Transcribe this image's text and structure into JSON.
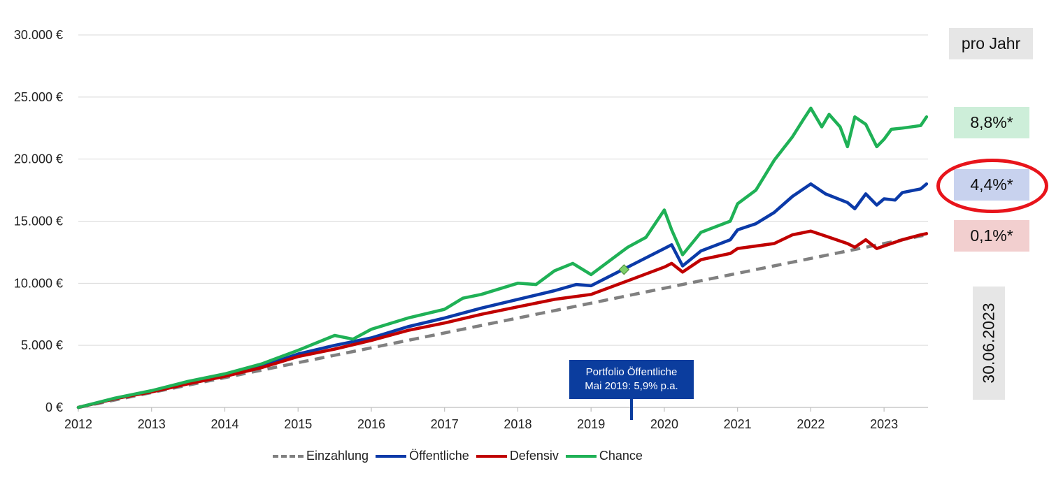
{
  "chart_data": {
    "type": "line",
    "title": "",
    "xlabel": "",
    "ylabel": "",
    "ylim": [
      0,
      30000
    ],
    "y_ticks": [
      "0 €",
      "5.000 €",
      "10.000 €",
      "15.000 €",
      "20.000 €",
      "25.000 €",
      "30.000 €"
    ],
    "x_ticks": [
      "2012",
      "2013",
      "2014",
      "2015",
      "2016",
      "2017",
      "2018",
      "2019",
      "2020",
      "2021",
      "2022",
      "2023"
    ],
    "xlim": [
      2012.0,
      2023.6
    ],
    "grid": "horizontal",
    "legend_position": "bottom",
    "series": [
      {
        "name": "Einzahlung",
        "color": "#808080",
        "style": "dashed",
        "x": [
          2012.0,
          2013.0,
          2014.0,
          2015.0,
          2016.0,
          2017.0,
          2018.0,
          2019.0,
          2020.0,
          2021.0,
          2022.0,
          2023.0,
          2023.58
        ],
        "y": [
          0,
          1200,
          2400,
          3600,
          4800,
          6000,
          7200,
          8400,
          9600,
          10800,
          12000,
          13200,
          13900
        ]
      },
      {
        "name": "Öffentliche",
        "color": "#0b3aa8",
        "style": "solid",
        "x": [
          2012.0,
          2012.5,
          2013.0,
          2013.5,
          2014.0,
          2014.5,
          2015.0,
          2015.5,
          2016.0,
          2016.5,
          2017.0,
          2017.5,
          2018.0,
          2018.5,
          2018.8,
          2019.0,
          2019.5,
          2020.0,
          2020.1,
          2020.25,
          2020.5,
          2020.9,
          2021.0,
          2021.25,
          2021.5,
          2021.75,
          2022.0,
          2022.2,
          2022.5,
          2022.6,
          2022.75,
          2022.9,
          2023.0,
          2023.15,
          2023.25,
          2023.5,
          2023.58
        ],
        "y": [
          0,
          700,
          1300,
          1950,
          2600,
          3300,
          4300,
          5000,
          5600,
          6500,
          7200,
          8000,
          8700,
          9400,
          9900,
          9800,
          11300,
          12800,
          13100,
          11400,
          12600,
          13500,
          14300,
          14800,
          15700,
          17000,
          18000,
          17200,
          16500,
          16000,
          17200,
          16300,
          16800,
          16700,
          17300,
          17600,
          18000
        ]
      },
      {
        "name": "Defensiv",
        "color": "#c00000",
        "style": "solid",
        "x": [
          2012.0,
          2012.5,
          2013.0,
          2013.5,
          2014.0,
          2014.5,
          2015.0,
          2015.5,
          2016.0,
          2016.5,
          2017.0,
          2017.5,
          2018.0,
          2018.5,
          2019.0,
          2019.5,
          2020.0,
          2020.1,
          2020.25,
          2020.5,
          2020.9,
          2021.0,
          2021.5,
          2021.75,
          2022.0,
          2022.2,
          2022.5,
          2022.6,
          2022.75,
          2022.9,
          2023.0,
          2023.25,
          2023.5,
          2023.58
        ],
        "y": [
          0,
          700,
          1250,
          1900,
          2500,
          3200,
          4100,
          4700,
          5400,
          6200,
          6800,
          7500,
          8100,
          8700,
          9100,
          10200,
          11300,
          11600,
          10900,
          11900,
          12400,
          12800,
          13200,
          13900,
          14200,
          13800,
          13200,
          12900,
          13500,
          12800,
          13000,
          13500,
          13900,
          14000
        ]
      },
      {
        "name": "Chance",
        "color": "#1fb156",
        "style": "solid",
        "x": [
          2012.0,
          2012.5,
          2013.0,
          2013.5,
          2014.0,
          2014.5,
          2015.0,
          2015.5,
          2015.75,
          2016.0,
          2016.5,
          2017.0,
          2017.25,
          2017.5,
          2018.0,
          2018.25,
          2018.5,
          2018.75,
          2019.0,
          2019.5,
          2019.75,
          2020.0,
          2020.1,
          2020.25,
          2020.5,
          2020.9,
          2021.0,
          2021.25,
          2021.5,
          2021.75,
          2021.9,
          2022.0,
          2022.15,
          2022.25,
          2022.4,
          2022.5,
          2022.6,
          2022.75,
          2022.9,
          2023.0,
          2023.1,
          2023.25,
          2023.5,
          2023.58
        ],
        "y": [
          0,
          750,
          1350,
          2100,
          2700,
          3500,
          4600,
          5800,
          5500,
          6300,
          7200,
          7900,
          8800,
          9100,
          10000,
          9900,
          11000,
          11600,
          10700,
          12900,
          13700,
          15900,
          14300,
          12300,
          14100,
          15000,
          16400,
          17500,
          19900,
          21800,
          23200,
          24100,
          22600,
          23600,
          22600,
          21000,
          23400,
          22800,
          21000,
          21600,
          22400,
          22500,
          22700,
          23400
        ]
      }
    ],
    "markers": [
      {
        "label": "Portfolio Öffentliche Mai 2019",
        "x": 2019.45,
        "y": 11100,
        "color": "#7fcf6a"
      }
    ]
  },
  "annotation": {
    "line1": "Portfolio Öffentliche",
    "line2": "Mai 2019: 5,9% p.a."
  },
  "side_labels": {
    "pro_jahr": "pro Jahr",
    "chance": "8,8%*",
    "oeffentliche": "4,4%*",
    "defensiv": "0,1%*",
    "date": "30.06.2023"
  },
  "colors": {
    "chance_box": "#cdeed9",
    "oeffentliche_box": "#c8d2ee",
    "defensiv_box": "#f2cfcf",
    "highlight": "#e8141b"
  }
}
